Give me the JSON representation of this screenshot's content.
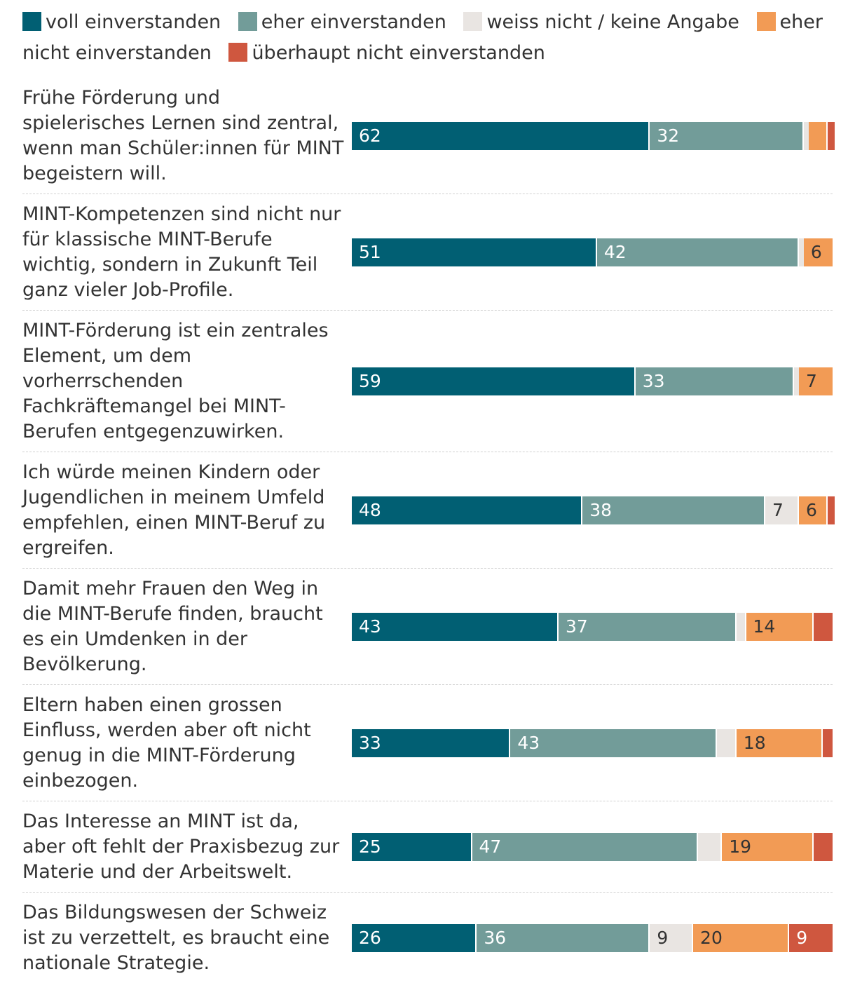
{
  "legend": [
    {
      "label": "voll einverstanden",
      "color": "#015f73"
    },
    {
      "label": "eher einverstanden",
      "color": "#729c99"
    },
    {
      "label": "weiss nicht / keine Angabe",
      "color": "#e9e5e2"
    },
    {
      "label": "eher nicht einverstanden",
      "color": "#f29b55"
    },
    {
      "label": "überhaupt nicht einverstanden",
      "color": "#cf573f"
    }
  ],
  "chart_data": {
    "type": "bar",
    "orientation": "horizontal",
    "stacked": true,
    "unit": "percent",
    "categories": [
      "Frühe Förderung und spielerisches Lernen sind zentral, wenn man Schüler:innen für MINT begeistern will.",
      "MINT-Kompetenzen sind nicht nur für klassische MINT-Berufe wichtig, sondern in Zukunft Teil ganz vieler Job-Profile.",
      "MINT-Förderung ist ein zentrales Element, um dem vorherrschenden Fachkräftemangel bei MINT-Berufen entgegenzuwirken.",
      "Ich würde meinen Kindern oder Jugendlichen in meinem Umfeld empfehlen, einen MINT-Beruf zu ergreifen.",
      "Damit mehr Frauen den Weg in die MINT-Berufe finden, braucht es ein Umdenken in der Bevölkerung.",
      "Eltern haben einen grossen Einfluss, werden aber oft nicht genug in die MINT-Förderung einbezogen.",
      "Das Interesse an MINT ist da, aber oft fehlt der Praxisbezug zur Materie und der Arbeitswelt.",
      "Das Bildungswesen der Schweiz ist zu verzettelt, es braucht eine nationale Strategie."
    ],
    "series": [
      {
        "name": "voll einverstanden",
        "values": [
          62,
          51,
          59,
          48,
          43,
          33,
          25,
          26
        ]
      },
      {
        "name": "eher einverstanden",
        "values": [
          32,
          42,
          33,
          38,
          37,
          43,
          47,
          36
        ]
      },
      {
        "name": "weiss nicht / keine Angabe",
        "values": [
          1,
          1,
          1,
          7,
          2,
          4,
          5,
          9
        ]
      },
      {
        "name": "eher nicht einverstanden",
        "values": [
          4,
          6,
          7,
          6,
          14,
          18,
          19,
          20
        ]
      },
      {
        "name": "überhaupt nicht einverstanden",
        "values": [
          1,
          0,
          0,
          1,
          4,
          2,
          4,
          9
        ]
      }
    ],
    "labels_shown": [
      [
        "62",
        "32",
        "",
        "",
        ""
      ],
      [
        "51",
        "42",
        "",
        "6",
        ""
      ],
      [
        "59",
        "33",
        "",
        "7",
        ""
      ],
      [
        "48",
        "38",
        "7",
        "6",
        ""
      ],
      [
        "43",
        "37",
        "",
        "14",
        ""
      ],
      [
        "33",
        "43",
        "",
        "18",
        ""
      ],
      [
        "25",
        "47",
        "",
        "19",
        ""
      ],
      [
        "26",
        "36",
        "9",
        "20",
        "9"
      ]
    ],
    "label_colors": [
      "#ffffff",
      "#ffffff",
      "#333333",
      "#333333",
      "#ffffff"
    ],
    "xlim": [
      0,
      100
    ]
  }
}
